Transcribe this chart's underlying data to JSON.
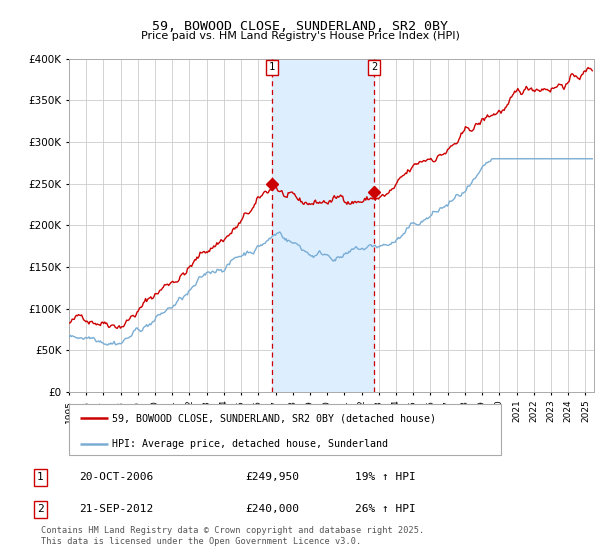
{
  "title": "59, BOWOOD CLOSE, SUNDERLAND, SR2 0BY",
  "subtitle": "Price paid vs. HM Land Registry's House Price Index (HPI)",
  "ylabel_ticks": [
    "£0",
    "£50K",
    "£100K",
    "£150K",
    "£200K",
    "£250K",
    "£300K",
    "£350K",
    "£400K"
  ],
  "ylim": [
    0,
    400000
  ],
  "xlim_start": 1995.0,
  "xlim_end": 2025.5,
  "vline1_x": 2006.8,
  "vline2_x": 2012.72,
  "marker1_x": 2006.8,
  "marker1_y": 249950,
  "marker2_x": 2012.72,
  "marker2_y": 240000,
  "transaction1_date": "20-OCT-2006",
  "transaction1_price": "£249,950",
  "transaction1_hpi": "19% ↑ HPI",
  "transaction2_date": "21-SEP-2012",
  "transaction2_price": "£240,000",
  "transaction2_hpi": "26% ↑ HPI",
  "legend_line1": "59, BOWOOD CLOSE, SUNDERLAND, SR2 0BY (detached house)",
  "legend_line2": "HPI: Average price, detached house, Sunderland",
  "footer": "Contains HM Land Registry data © Crown copyright and database right 2025.\nThis data is licensed under the Open Government Licence v3.0.",
  "red_color": "#cc0000",
  "blue_color": "#7aadd4",
  "shade_color": "#ddeeff",
  "background_color": "#ffffff",
  "grid_color": "#cccccc"
}
